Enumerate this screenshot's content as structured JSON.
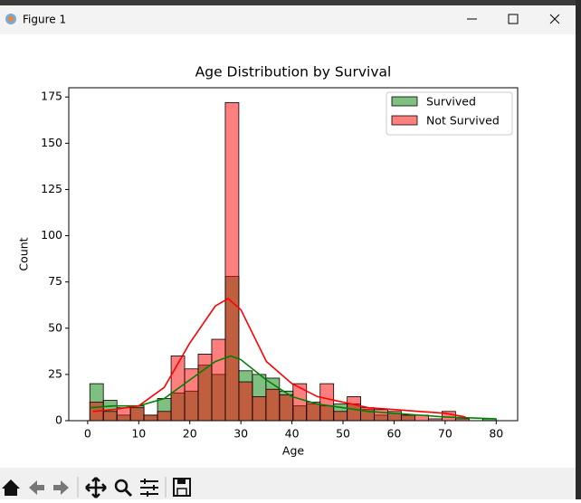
{
  "window": {
    "title": "Figure 1"
  },
  "chart_data": {
    "type": "histogram",
    "title": "Age Distribution by Survival",
    "x_label": "Age",
    "y_label": "Count",
    "bins": [
      0.42,
      3.07,
      5.73,
      8.38,
      11.03,
      13.68,
      16.34,
      18.99,
      21.64,
      24.29,
      26.95,
      29.6,
      32.25,
      34.91,
      37.56,
      40.21,
      42.86,
      45.52,
      48.17,
      50.82,
      53.47,
      56.13,
      58.78,
      61.43,
      64.08,
      66.74,
      69.39,
      72.04,
      74.69,
      77.35,
      80
    ],
    "series": [
      {
        "name": "Survived",
        "color": "green",
        "values": [
          20,
          11,
          3,
          8,
          3,
          12,
          15,
          16,
          30,
          25,
          78,
          27,
          25,
          23,
          16,
          8,
          9,
          8,
          9,
          9,
          6,
          3,
          4,
          3,
          0,
          0,
          0,
          0,
          0,
          1
        ],
        "kde": {
          "x": [
            0.42,
            5,
            10,
            15,
            20,
            25,
            28,
            30,
            35,
            40,
            45,
            50,
            55,
            60,
            65,
            70,
            75,
            80
          ],
          "y": [
            7,
            8,
            8,
            12,
            22,
            32,
            35,
            33,
            22,
            13,
            9,
            7,
            5,
            4,
            3,
            2,
            1.5,
            1
          ]
        }
      },
      {
        "name": "Not Survived",
        "color": "red",
        "values": [
          10,
          5,
          7,
          7,
          3,
          5,
          35,
          28,
          36,
          44,
          172,
          21,
          13,
          17,
          14,
          20,
          10,
          20,
          5,
          13,
          7,
          6,
          5,
          3,
          3,
          1,
          5,
          1,
          0,
          0
        ],
        "kde": {
          "x": [
            1,
            5,
            10,
            15,
            20,
            25,
            27.5,
            30,
            35,
            40,
            45,
            50,
            55,
            60,
            65,
            70,
            74
          ],
          "y": [
            5,
            6,
            8,
            18,
            42,
            62,
            66,
            60,
            32,
            20,
            13,
            10,
            7,
            6,
            5,
            4,
            2
          ]
        }
      }
    ],
    "xlim": [
      -3.7,
      84.2
    ],
    "ylim": [
      0,
      180
    ],
    "xticks": [
      0,
      10,
      20,
      30,
      40,
      50,
      60,
      70,
      80
    ],
    "yticks": [
      0,
      25,
      50,
      75,
      100,
      125,
      150,
      175
    ],
    "legend": "upper right"
  }
}
